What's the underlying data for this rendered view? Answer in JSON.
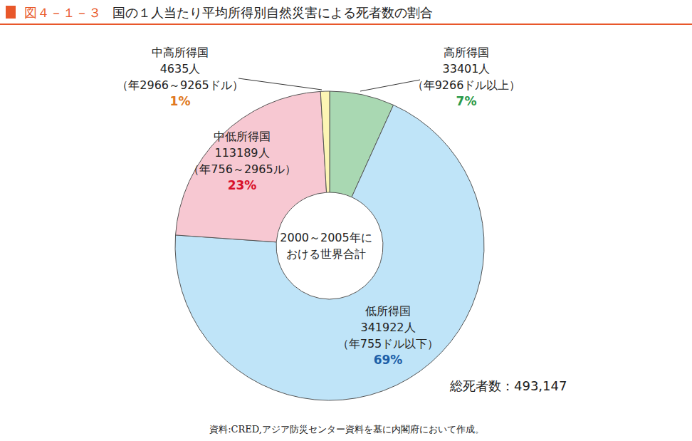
{
  "chart_data": {
    "type": "pie",
    "figure_number": "図４－１－３",
    "title": "国の１人当たり平均所得別自然災害による死者数の割合",
    "center_text": [
      "2000～2005年に",
      "おける世界合計"
    ],
    "categories": [
      "高所得国",
      "低所得国",
      "中低所得国",
      "中高所得国"
    ],
    "values": [
      33401,
      341922,
      113189,
      4635
    ],
    "value_labels": [
      "33401人",
      "341922人",
      "113189人",
      "4635人"
    ],
    "ranges": [
      "（年9266ドル以上）",
      "（年755ドル以下）",
      "（年756～2965ル）",
      "（年2966～9265ドル）"
    ],
    "percent_labels": [
      "7%",
      "69%",
      "23%",
      "1%"
    ],
    "colors": [
      "#a9d8b2",
      "#bfe4f8",
      "#f7c8d2",
      "#fcf5b4"
    ],
    "total_label": "総死者数：493,147",
    "source": "資料:CRED,アジア防災センター資料を基に内閣府において作成。"
  }
}
